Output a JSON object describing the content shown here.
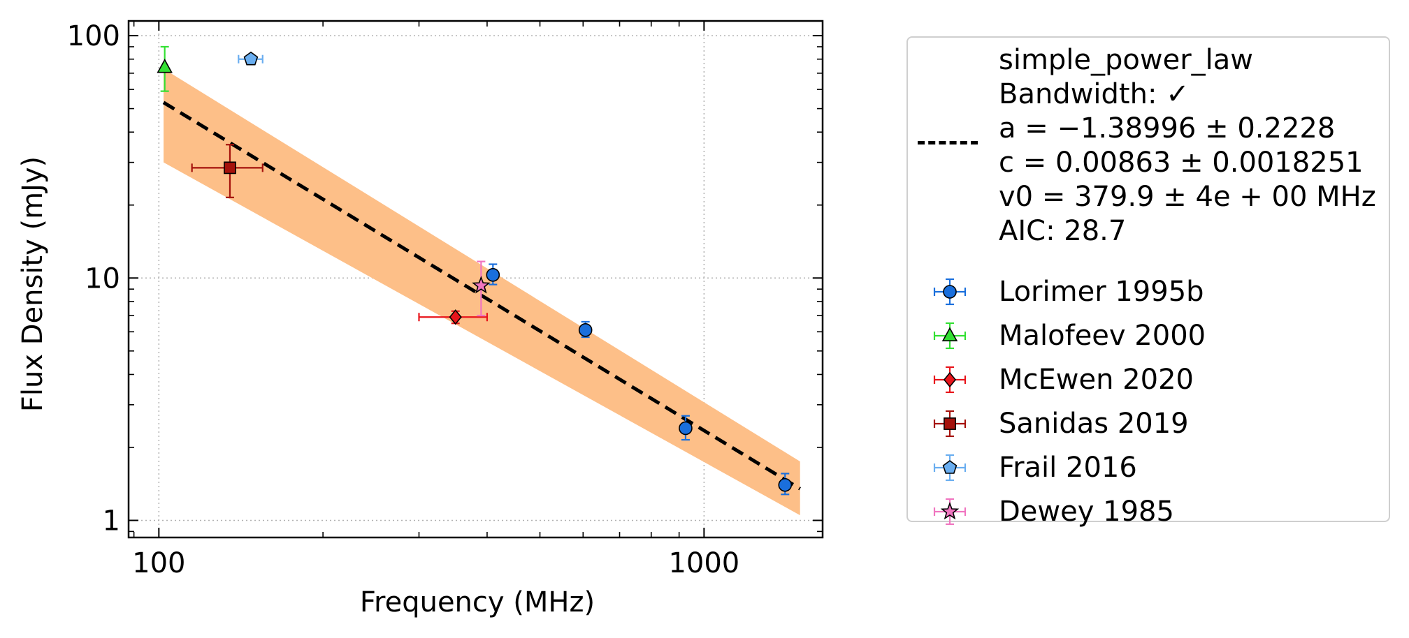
{
  "chart_data": {
    "type": "scatter",
    "title": "",
    "xlabel": "Frequency (MHz)",
    "ylabel": "Flux Density (mJy)",
    "x_scale": "log",
    "y_scale": "log",
    "xlim": [
      88,
      1650
    ],
    "ylim": [
      0.85,
      115
    ],
    "x_ticks": [
      {
        "value": 100,
        "label": "100"
      },
      {
        "value": 1000,
        "label": "1000"
      }
    ],
    "y_ticks": [
      {
        "value": 1,
        "label": "1"
      },
      {
        "value": 10,
        "label": "10"
      },
      {
        "value": 100,
        "label": "100"
      }
    ],
    "grid": true,
    "legend_position": "outside-right",
    "fit": {
      "name": "simple_power_law",
      "label_lines": [
        "simple_power_law",
        "Bandwidth: ✓",
        "a = −1.38996 ± 0.2228",
        "c = 0.00863 ± 0.0018251",
        "v0 = 379.9 ± 4e + 00 MHz",
        "AIC: 28.7"
      ],
      "a": -1.38996,
      "a_err": 0.2228,
      "c": 0.00863,
      "v0": 379.9,
      "x_range": [
        102,
        1500
      ],
      "y_line": [
        53,
        1.35
      ],
      "band_upper": [
        73,
        1.75
      ],
      "band_lower": [
        30,
        1.05
      ],
      "line_color": "#000000",
      "band_color": "#fdbf88"
    },
    "series": [
      {
        "name": "Lorimer 1995b",
        "marker": "circle",
        "color": "#1a6fdc",
        "err_color": "#1a6fdc",
        "points": [
          {
            "x": 410,
            "y": 10.3,
            "yerr": [
              0.9,
              1.1
            ]
          },
          {
            "x": 606,
            "y": 6.1,
            "yerr": [
              0.4,
              0.5
            ]
          },
          {
            "x": 925,
            "y": 2.4,
            "yerr": [
              0.25,
              0.3
            ]
          },
          {
            "x": 1408,
            "y": 1.4,
            "yerr": [
              0.12,
              0.16
            ]
          }
        ]
      },
      {
        "name": "Malofeev 2000",
        "marker": "triangle",
        "color": "#33e033",
        "err_color": "#33e033",
        "points": [
          {
            "x": 102.5,
            "y": 74,
            "yerr": [
              15,
              16
            ]
          }
        ]
      },
      {
        "name": "McEwen 2020",
        "marker": "diamond",
        "color": "#e8141b",
        "err_color": "#e8141b",
        "points": [
          {
            "x": 350,
            "y": 6.9,
            "yerr": [
              0.4,
              0.4
            ],
            "xerr": [
              50,
              50
            ]
          }
        ]
      },
      {
        "name": "Sanidas 2019",
        "marker": "square",
        "color": "#a5120c",
        "err_color": "#a5120c",
        "points": [
          {
            "x": 135,
            "y": 28.5,
            "yerr": [
              7,
              7
            ],
            "xerr": [
              20,
              20
            ]
          }
        ]
      },
      {
        "name": "Frail 2016",
        "marker": "pentagon",
        "color": "#6aaef0",
        "err_color": "#6aaef0",
        "points": [
          {
            "x": 147.5,
            "y": 80,
            "yerr": [
              3,
              3
            ],
            "xerr": [
              7.5,
              7.5
            ]
          }
        ]
      },
      {
        "name": "Dewey 1985",
        "marker": "star",
        "color": "#f075c0",
        "err_color": "#f075c0",
        "points": [
          {
            "x": 390,
            "y": 9.3,
            "yerr": [
              2.3,
              2.4
            ]
          }
        ]
      }
    ]
  }
}
